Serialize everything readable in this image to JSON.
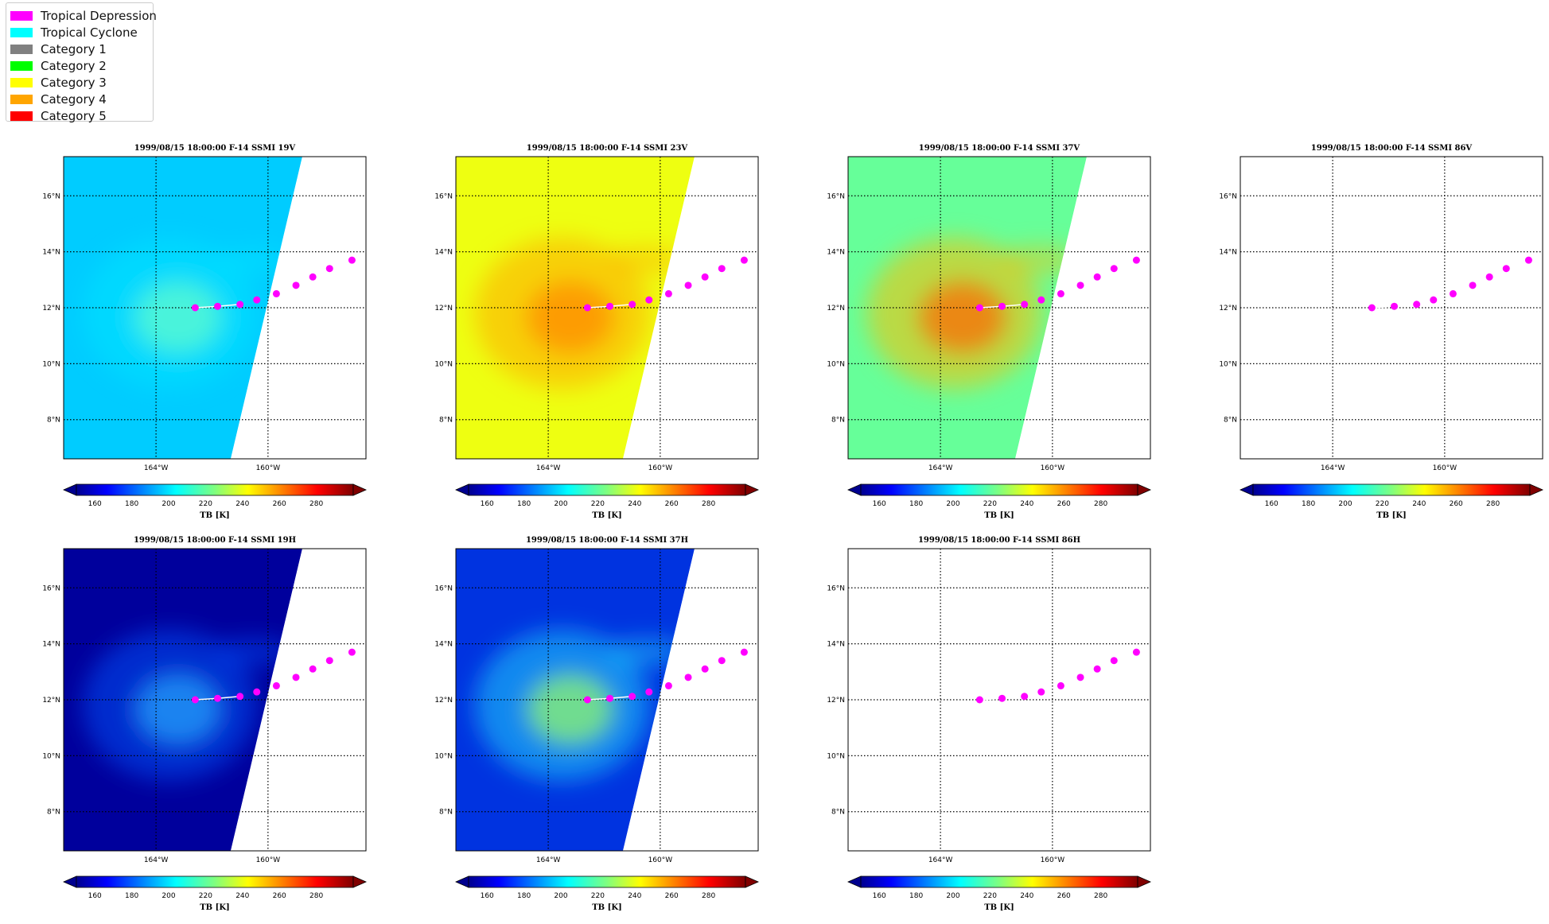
{
  "legend": {
    "items": [
      {
        "label": "Tropical Depression",
        "color": "#ff00ff"
      },
      {
        "label": "Tropical Cyclone",
        "color": "#00ffff"
      },
      {
        "label": "Category 1",
        "color": "#808080"
      },
      {
        "label": "Category 2",
        "color": "#00ff00"
      },
      {
        "label": "Category 3",
        "color": "#ffff00"
      },
      {
        "label": "Category 4",
        "color": "#ffa500"
      },
      {
        "label": "Category 5",
        "color": "#ff0000"
      }
    ]
  },
  "chart_data": [
    {
      "type": "heatmap",
      "title": "1999/08/15 18:00:00  F-14 SSMI 19V",
      "channel": "19V",
      "has_swath": true,
      "fill_color": "#00ccff",
      "warm_core": false
    },
    {
      "type": "heatmap",
      "title": "1999/08/15 18:00:00  F-14 SSMI 23V",
      "channel": "23V",
      "has_swath": true,
      "fill_color": "#eeff11",
      "warm_core": true
    },
    {
      "type": "heatmap",
      "title": "1999/08/15 18:00:00  F-14 SSMI 37V",
      "channel": "37V",
      "has_swath": true,
      "fill_color": "#66ff99",
      "warm_core": true
    },
    {
      "type": "heatmap",
      "title": "1999/08/15 18:00:00  F-14 SSMI 86V",
      "channel": "86V",
      "has_swath": false,
      "fill_color": "#ffffff",
      "warm_core": false
    },
    {
      "type": "heatmap",
      "title": "1999/08/15 18:00:00  F-14 SSMI 19H",
      "channel": "19H",
      "has_swath": true,
      "fill_color": "#00009c",
      "warm_core": false
    },
    {
      "type": "heatmap",
      "title": "1999/08/15 18:00:00  F-14 SSMI 37H",
      "channel": "37H",
      "has_swath": true,
      "fill_color": "#0033e0",
      "warm_core": false
    },
    {
      "type": "heatmap",
      "title": "1999/08/15 18:00:00  F-14 SSMI 86H",
      "channel": "86H",
      "has_swath": false,
      "fill_color": "#ffffff",
      "warm_core": false
    }
  ],
  "map": {
    "lat_ticks": [
      8,
      10,
      12,
      14,
      16
    ],
    "lat_labels": [
      "8°N",
      "10°N",
      "12°N",
      "14°N",
      "16°N"
    ],
    "lon_ticks": [
      -164,
      -160
    ],
    "lon_labels": [
      "164°W",
      "160°W"
    ],
    "lon_range": [
      -167.3,
      -156.5
    ],
    "lat_range": [
      6.6,
      17.4
    ]
  },
  "track": {
    "category": "Tropical Depression",
    "points": [
      {
        "lon": -162.6,
        "lat": 12.0
      },
      {
        "lon": -161.8,
        "lat": 12.05
      },
      {
        "lon": -161.0,
        "lat": 12.12
      },
      {
        "lon": -160.4,
        "lat": 12.28
      },
      {
        "lon": -159.7,
        "lat": 12.5
      },
      {
        "lon": -159.0,
        "lat": 12.8
      },
      {
        "lon": -158.4,
        "lat": 13.1
      },
      {
        "lon": -157.8,
        "lat": 13.4
      },
      {
        "lon": -157.0,
        "lat": 13.7
      }
    ]
  },
  "colorbar": {
    "label": "TB [K]",
    "ticks": [
      160,
      180,
      200,
      220,
      240,
      260,
      280
    ],
    "range": [
      150,
      300
    ]
  }
}
